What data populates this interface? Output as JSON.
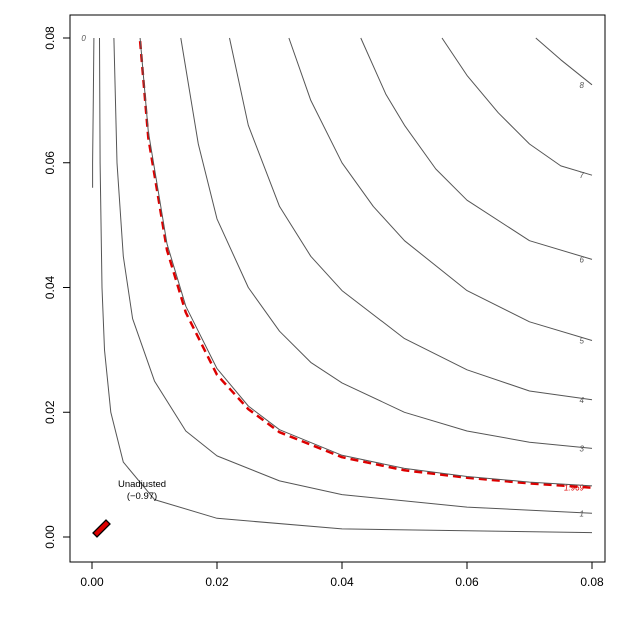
{
  "chart_data": {
    "type": "contour",
    "title": "",
    "xlabel": "",
    "ylabel": "",
    "xlim": [
      0,
      0.08
    ],
    "ylim": [
      0,
      0.08
    ],
    "x_ticks": [
      "0.00",
      "0.02",
      "0.04",
      "0.06",
      "0.08"
    ],
    "y_ticks": [
      "0.00",
      "0.02",
      "0.04",
      "0.06",
      "0.08"
    ],
    "grid": false,
    "contours": [
      {
        "label": "0",
        "points": [
          [
            0.0001,
            0.056
          ],
          [
            0.0001,
            0.06
          ],
          [
            0.0002,
            0.07
          ],
          [
            0.0003,
            0.08
          ]
        ]
      },
      {
        "label": "",
        "points": [
          [
            0.0012,
            0.08
          ],
          [
            0.0013,
            0.06
          ],
          [
            0.0016,
            0.04
          ],
          [
            0.002,
            0.03
          ],
          [
            0.003,
            0.02
          ],
          [
            0.005,
            0.012
          ],
          [
            0.01,
            0.006
          ],
          [
            0.02,
            0.003
          ],
          [
            0.04,
            0.0013
          ],
          [
            0.08,
            0.0007
          ]
        ]
      },
      {
        "label": "1",
        "points": [
          [
            0.0035,
            0.08
          ],
          [
            0.004,
            0.06
          ],
          [
            0.005,
            0.045
          ],
          [
            0.0065,
            0.035
          ],
          [
            0.01,
            0.025
          ],
          [
            0.015,
            0.017
          ],
          [
            0.02,
            0.013
          ],
          [
            0.03,
            0.009
          ],
          [
            0.04,
            0.0068
          ],
          [
            0.06,
            0.0048
          ],
          [
            0.08,
            0.0038
          ]
        ]
      },
      {
        "label": "1.969",
        "dashed": true,
        "color": "#dd0000",
        "points": [
          [
            0.0077,
            0.0795
          ],
          [
            0.009,
            0.064
          ],
          [
            0.012,
            0.046
          ],
          [
            0.015,
            0.036
          ],
          [
            0.02,
            0.026
          ],
          [
            0.025,
            0.0205
          ],
          [
            0.03,
            0.0168
          ],
          [
            0.04,
            0.0128
          ],
          [
            0.05,
            0.0107
          ],
          [
            0.06,
            0.0095
          ],
          [
            0.07,
            0.0086
          ],
          [
            0.08,
            0.0079
          ]
        ]
      },
      {
        "label": "",
        "points": [
          [
            0.0077,
            0.08
          ],
          [
            0.009,
            0.065
          ],
          [
            0.012,
            0.047
          ],
          [
            0.015,
            0.037
          ],
          [
            0.02,
            0.027
          ],
          [
            0.025,
            0.021
          ],
          [
            0.03,
            0.0172
          ],
          [
            0.04,
            0.0131
          ],
          [
            0.05,
            0.011
          ],
          [
            0.06,
            0.0097
          ],
          [
            0.07,
            0.0088
          ],
          [
            0.08,
            0.0082
          ]
        ]
      },
      {
        "label": "3",
        "points": [
          [
            0.0142,
            0.08
          ],
          [
            0.017,
            0.063
          ],
          [
            0.02,
            0.051
          ],
          [
            0.025,
            0.04
          ],
          [
            0.03,
            0.033
          ],
          [
            0.035,
            0.028
          ],
          [
            0.04,
            0.0247
          ],
          [
            0.05,
            0.02
          ],
          [
            0.06,
            0.017
          ],
          [
            0.07,
            0.0152
          ],
          [
            0.08,
            0.0142
          ]
        ]
      },
      {
        "label": "4",
        "points": [
          [
            0.022,
            0.08
          ],
          [
            0.025,
            0.066
          ],
          [
            0.03,
            0.053
          ],
          [
            0.035,
            0.045
          ],
          [
            0.04,
            0.0395
          ],
          [
            0.05,
            0.0318
          ],
          [
            0.06,
            0.0268
          ],
          [
            0.07,
            0.0234
          ],
          [
            0.08,
            0.022
          ]
        ]
      },
      {
        "label": "5",
        "points": [
          [
            0.0315,
            0.08
          ],
          [
            0.035,
            0.07
          ],
          [
            0.04,
            0.06
          ],
          [
            0.045,
            0.053
          ],
          [
            0.05,
            0.0475
          ],
          [
            0.06,
            0.0395
          ],
          [
            0.07,
            0.0345
          ],
          [
            0.08,
            0.0315
          ]
        ]
      },
      {
        "label": "6",
        "points": [
          [
            0.043,
            0.08
          ],
          [
            0.047,
            0.071
          ],
          [
            0.05,
            0.066
          ],
          [
            0.055,
            0.059
          ],
          [
            0.06,
            0.054
          ],
          [
            0.07,
            0.0475
          ],
          [
            0.08,
            0.0445
          ]
        ]
      },
      {
        "label": "7",
        "points": [
          [
            0.056,
            0.08
          ],
          [
            0.06,
            0.074
          ],
          [
            0.065,
            0.068
          ],
          [
            0.07,
            0.063
          ],
          [
            0.075,
            0.0595
          ],
          [
            0.08,
            0.058
          ]
        ]
      },
      {
        "label": "8",
        "points": [
          [
            0.071,
            0.08
          ],
          [
            0.075,
            0.0765
          ],
          [
            0.08,
            0.0725
          ]
        ]
      }
    ],
    "annotation": {
      "lines": [
        "Unadjusted",
        "(−0.97)"
      ],
      "x": 0.0032,
      "y": 0.0048
    },
    "marker": {
      "x": 0.0008,
      "y": 0.0008,
      "fill": "#dd0000"
    },
    "colors": {
      "contour": "#555555",
      "highlight": "#dd0000"
    }
  }
}
